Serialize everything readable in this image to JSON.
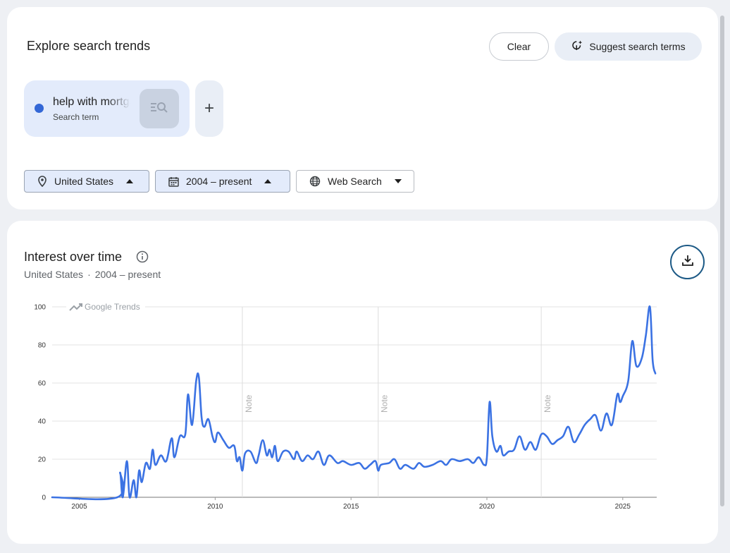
{
  "header": {
    "title": "Explore search trends",
    "clear_label": "Clear",
    "suggest_label": "Suggest search terms"
  },
  "term": {
    "name": "help with mortgage",
    "type": "Search term",
    "color": "#3367d6"
  },
  "add_term_label": "+",
  "filters": {
    "geo": "United States",
    "time": "2004 – present",
    "property": "Web Search"
  },
  "chart_section": {
    "title": "Interest over time",
    "subtitle_geo": "United States",
    "subtitle_sep": "·",
    "subtitle_time": "2004 – present",
    "watermark": "Google Trends",
    "note_label": "Note"
  },
  "icons": {
    "suggest": "sparkle-pin-icon",
    "term_search": "search-list-icon",
    "geo": "location-pin-icon",
    "time": "calendar-icon",
    "property": "globe-icon",
    "info": "info-icon",
    "download": "download-icon"
  },
  "chart_data": {
    "type": "line",
    "title": "Interest over time",
    "series": [
      {
        "name": "help with mortgage",
        "color": "#3b72e3"
      }
    ],
    "ylim": [
      0,
      100
    ],
    "yticks": [
      0,
      20,
      40,
      60,
      80,
      100
    ],
    "xlim": [
      2004.0,
      2026.25
    ],
    "xticks": [
      2005,
      2010,
      2015,
      2020,
      2025
    ],
    "notes": [
      2011.0,
      2016.0,
      2022.0
    ],
    "grid": true,
    "points": [
      [
        2004.0,
        0
      ],
      [
        2006.4,
        0
      ],
      [
        2006.5,
        13
      ],
      [
        2006.6,
        0
      ],
      [
        2006.75,
        19
      ],
      [
        2006.85,
        0
      ],
      [
        2007.0,
        9
      ],
      [
        2007.1,
        0
      ],
      [
        2007.2,
        14
      ],
      [
        2007.3,
        8
      ],
      [
        2007.45,
        18
      ],
      [
        2007.6,
        15
      ],
      [
        2007.7,
        25
      ],
      [
        2007.8,
        17
      ],
      [
        2008.0,
        22
      ],
      [
        2008.2,
        19
      ],
      [
        2008.4,
        31
      ],
      [
        2008.5,
        21
      ],
      [
        2008.7,
        32
      ],
      [
        2008.9,
        33
      ],
      [
        2009.0,
        54
      ],
      [
        2009.15,
        38
      ],
      [
        2009.3,
        61
      ],
      [
        2009.4,
        63
      ],
      [
        2009.5,
        42
      ],
      [
        2009.6,
        37
      ],
      [
        2009.75,
        41
      ],
      [
        2009.9,
        32
      ],
      [
        2010.0,
        29
      ],
      [
        2010.1,
        34
      ],
      [
        2010.3,
        30
      ],
      [
        2010.5,
        26
      ],
      [
        2010.7,
        27
      ],
      [
        2010.8,
        19
      ],
      [
        2010.9,
        21
      ],
      [
        2011.0,
        14
      ],
      [
        2011.1,
        23
      ],
      [
        2011.3,
        24
      ],
      [
        2011.5,
        18
      ],
      [
        2011.6,
        22
      ],
      [
        2011.75,
        30
      ],
      [
        2011.9,
        22
      ],
      [
        2012.0,
        25
      ],
      [
        2012.1,
        21
      ],
      [
        2012.2,
        27
      ],
      [
        2012.3,
        19
      ],
      [
        2012.5,
        24
      ],
      [
        2012.7,
        24
      ],
      [
        2012.9,
        20
      ],
      [
        2013.0,
        24
      ],
      [
        2013.2,
        19
      ],
      [
        2013.4,
        22
      ],
      [
        2013.6,
        20
      ],
      [
        2013.8,
        24
      ],
      [
        2014.0,
        17
      ],
      [
        2014.2,
        22
      ],
      [
        2014.5,
        18
      ],
      [
        2014.7,
        19
      ],
      [
        2015.0,
        17
      ],
      [
        2015.3,
        18
      ],
      [
        2015.5,
        15
      ],
      [
        2015.7,
        17
      ],
      [
        2015.9,
        19
      ],
      [
        2016.0,
        14
      ],
      [
        2016.1,
        17
      ],
      [
        2016.4,
        18
      ],
      [
        2016.6,
        20
      ],
      [
        2016.8,
        15
      ],
      [
        2017.0,
        17
      ],
      [
        2017.3,
        15
      ],
      [
        2017.5,
        18
      ],
      [
        2017.7,
        16
      ],
      [
        2018.0,
        17
      ],
      [
        2018.3,
        19
      ],
      [
        2018.5,
        17
      ],
      [
        2018.7,
        20
      ],
      [
        2019.0,
        19
      ],
      [
        2019.3,
        20
      ],
      [
        2019.5,
        18
      ],
      [
        2019.7,
        21
      ],
      [
        2019.9,
        17
      ],
      [
        2020.0,
        21
      ],
      [
        2020.1,
        50
      ],
      [
        2020.2,
        32
      ],
      [
        2020.35,
        24
      ],
      [
        2020.5,
        27
      ],
      [
        2020.6,
        22
      ],
      [
        2020.8,
        24
      ],
      [
        2021.0,
        25
      ],
      [
        2021.2,
        32
      ],
      [
        2021.4,
        25
      ],
      [
        2021.6,
        29
      ],
      [
        2021.8,
        25
      ],
      [
        2022.0,
        33
      ],
      [
        2022.2,
        32
      ],
      [
        2022.4,
        28
      ],
      [
        2022.6,
        30
      ],
      [
        2022.8,
        32
      ],
      [
        2023.0,
        37
      ],
      [
        2023.2,
        29
      ],
      [
        2023.4,
        33
      ],
      [
        2023.6,
        38
      ],
      [
        2023.8,
        41
      ],
      [
        2024.0,
        43
      ],
      [
        2024.2,
        35
      ],
      [
        2024.4,
        44
      ],
      [
        2024.6,
        38
      ],
      [
        2024.8,
        54
      ],
      [
        2024.9,
        50
      ],
      [
        2025.0,
        53
      ],
      [
        2025.2,
        61
      ],
      [
        2025.35,
        82
      ],
      [
        2025.5,
        69
      ],
      [
        2025.7,
        73
      ],
      [
        2025.85,
        85
      ],
      [
        2026.0,
        100
      ],
      [
        2026.1,
        72
      ],
      [
        2026.2,
        65
      ]
    ]
  }
}
